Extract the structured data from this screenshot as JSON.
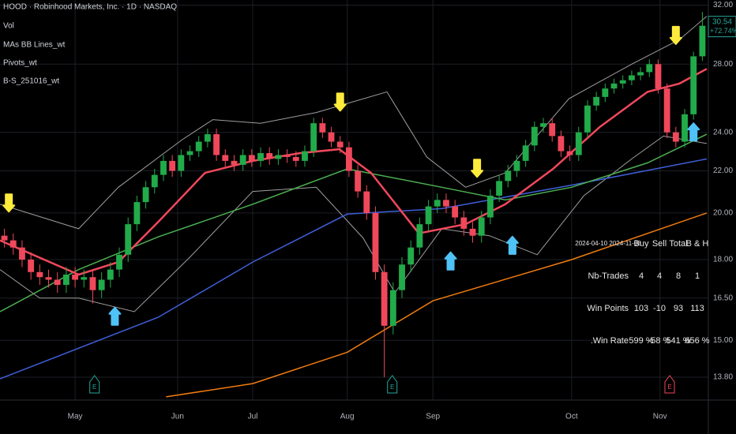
{
  "header": {
    "title": "HOOD · Robinhood Markets, Inc. · 1D · NASDAQ",
    "indicators": [
      "Vol",
      "MAs BB Lines_wt",
      "Pivots_wt",
      "B-S_251016_wt"
    ]
  },
  "chart_data": {
    "type": "candlestick",
    "log_scale": true,
    "grid": true,
    "up_color": "#22ab4a",
    "down_color": "#f0485b",
    "xlim": [
      0,
      80
    ],
    "xticks": [
      {
        "value": 8.5,
        "label": "May"
      },
      {
        "value": 20.1,
        "label": "Jun"
      },
      {
        "value": 28.6,
        "label": "Jul"
      },
      {
        "value": 39.3,
        "label": "Aug"
      },
      {
        "value": 49,
        "label": "Sep"
      },
      {
        "value": 64.7,
        "label": "Oct"
      },
      {
        "value": 74.7,
        "label": "Nov"
      }
    ],
    "ylim": [
      13.15,
      32.37
    ],
    "yticks": [
      {
        "value": 32,
        "label": "32.00"
      },
      {
        "value": 28,
        "label": "28.00"
      },
      {
        "value": 24,
        "label": "24.00"
      },
      {
        "value": 22,
        "label": "22.00"
      },
      {
        "value": 20,
        "label": "20.00"
      },
      {
        "value": 18,
        "label": "18.00"
      },
      {
        "value": 16.5,
        "label": "16.50"
      },
      {
        "value": 15,
        "label": "15.00"
      },
      {
        "value": 13.8,
        "label": "13.80"
      }
    ],
    "open": [
      19.0,
      18.8,
      18.5,
      18.0,
      17.5,
      17.3,
      17.2,
      17.0,
      17.4,
      17.2,
      17.3,
      16.8,
      17.2,
      17.6,
      18.2,
      19.5,
      20.5,
      21.2,
      21.8,
      22.5,
      22.0,
      22.8,
      23.0,
      23.5,
      23.9,
      22.8,
      22.5,
      22.3,
      22.8,
      22.5,
      22.9,
      22.6,
      22.8,
      22.7,
      22.5,
      23.0,
      24.5,
      24.0,
      23.5,
      23.2,
      22.0,
      21.0,
      20.0,
      17.5,
      15.5,
      16.8,
      17.8,
      18.5,
      19.5,
      20.3,
      20.6,
      20.3,
      19.8,
      19.3,
      19.0,
      19.8,
      20.8,
      21.5,
      22.0,
      22.5,
      23.3,
      24.3,
      24.5,
      23.8,
      23.0,
      22.8,
      24.0,
      25.5,
      26.0,
      26.5,
      26.8,
      27.0,
      27.3,
      27.5,
      28.0,
      26.5,
      24.0,
      23.5,
      25.0,
      28.5
    ],
    "high": [
      19.3,
      19.1,
      18.8,
      18.3,
      17.8,
      17.6,
      17.5,
      17.7,
      17.7,
      17.6,
      17.6,
      17.5,
      17.9,
      18.5,
      19.8,
      20.8,
      21.5,
      22.1,
      22.8,
      22.8,
      23.1,
      23.3,
      23.8,
      24.2,
      24.2,
      23.1,
      22.8,
      23.1,
      23.1,
      23.2,
      23.2,
      23.1,
      23.1,
      23.0,
      23.3,
      24.8,
      24.8,
      24.3,
      23.8,
      23.5,
      22.3,
      21.3,
      20.3,
      17.8,
      17.1,
      18.1,
      18.8,
      19.8,
      20.6,
      20.9,
      20.9,
      20.6,
      20.1,
      19.6,
      20.1,
      21.1,
      21.8,
      22.3,
      22.8,
      23.6,
      24.6,
      24.8,
      24.8,
      24.1,
      23.3,
      24.3,
      25.8,
      26.3,
      26.8,
      27.1,
      27.3,
      27.6,
      27.8,
      28.3,
      28.3,
      26.8,
      24.3,
      25.3,
      28.8,
      31.5
    ],
    "low": [
      18.5,
      18.2,
      17.7,
      17.2,
      17.0,
      16.9,
      16.7,
      16.7,
      16.9,
      16.9,
      16.3,
      16.5,
      16.9,
      17.3,
      17.9,
      19.2,
      20.2,
      20.9,
      21.5,
      21.7,
      21.7,
      22.5,
      22.7,
      23.2,
      22.5,
      22.2,
      22.0,
      22.0,
      22.2,
      22.2,
      22.3,
      22.3,
      22.4,
      22.2,
      22.2,
      22.7,
      23.7,
      23.2,
      22.9,
      21.7,
      20.7,
      19.7,
      17.2,
      13.8,
      15.2,
      16.5,
      17.5,
      18.2,
      19.2,
      20.0,
      20.0,
      19.5,
      19.0,
      18.7,
      18.7,
      19.5,
      20.5,
      21.2,
      21.7,
      22.2,
      23.0,
      24.0,
      23.5,
      22.7,
      22.5,
      22.5,
      23.7,
      25.2,
      25.7,
      26.2,
      26.5,
      26.7,
      27.0,
      27.2,
      26.2,
      23.7,
      23.2,
      23.2,
      24.7,
      28.2
    ],
    "close": [
      18.8,
      18.5,
      18.0,
      17.5,
      17.3,
      17.2,
      17.0,
      17.4,
      17.2,
      17.3,
      16.8,
      17.2,
      17.6,
      18.2,
      19.5,
      20.5,
      21.2,
      21.8,
      22.5,
      22.0,
      22.8,
      23.0,
      23.5,
      23.9,
      22.8,
      22.5,
      22.3,
      22.8,
      22.5,
      22.9,
      22.6,
      22.8,
      22.7,
      22.5,
      23.0,
      24.5,
      24.0,
      23.5,
      23.2,
      22.0,
      21.0,
      20.0,
      17.5,
      15.5,
      16.8,
      17.8,
      18.5,
      19.5,
      20.3,
      20.6,
      20.3,
      19.8,
      19.3,
      19.0,
      19.8,
      20.8,
      21.5,
      22.0,
      22.5,
      23.3,
      24.3,
      24.5,
      23.8,
      23.0,
      22.8,
      24.0,
      25.5,
      26.0,
      26.5,
      26.8,
      27.0,
      27.3,
      27.5,
      28.0,
      26.5,
      24.0,
      23.5,
      25.0,
      28.5,
      30.54
    ],
    "lines": [
      {
        "color": "#9e9e9e",
        "width": 1,
        "x": [
          0,
          8.9,
          13.4,
          20.6,
          24.1,
          29.5,
          35.8,
          43.8,
          48.3,
          52.7,
          57.2,
          64.4,
          71.5,
          76.9,
          80
        ],
        "values": [
          20.4,
          19.3,
          21.2,
          23.6,
          24.7,
          24.5,
          25.1,
          26.3,
          22.7,
          21.2,
          21.9,
          25.9,
          28.0,
          29.6,
          31.2
        ]
      },
      {
        "color": "#9e9e9e",
        "width": 1,
        "x": [
          0,
          4.5,
          8.9,
          15.2,
          21.5,
          28.6,
          35.8,
          41.1,
          44.7,
          50,
          55.4,
          60.8,
          66.1,
          71.5,
          75.1,
          80
        ],
        "values": [
          17.6,
          16.5,
          16.5,
          16.0,
          18.1,
          21.0,
          21.2,
          18.9,
          16.7,
          19.3,
          19.0,
          18.2,
          20.8,
          22.6,
          23.8,
          23.4
        ]
      },
      {
        "color": "#f07c0f",
        "width": 1.5,
        "x": [
          18.8,
          28.6,
          39.3,
          49,
          64.7,
          80
        ],
        "values": [
          13.2,
          13.6,
          14.6,
          16.4,
          18.0,
          20.0
        ]
      },
      {
        "color": "#3f5fd9",
        "width": 1.5,
        "x": [
          0,
          17.9,
          28.6,
          39.3,
          50,
          64.7,
          80
        ],
        "values": [
          13.75,
          15.8,
          17.9,
          19.95,
          20.2,
          21.3,
          22.6
        ]
      },
      {
        "color": "#4caf50",
        "width": 1.5,
        "x": [
          0,
          8.9,
          17.9,
          28.6,
          39.3,
          50,
          57.2,
          64.7,
          73.3,
          80
        ],
        "values": [
          16.0,
          17.6,
          18.95,
          20.4,
          22.1,
          21.2,
          20.6,
          21.2,
          22.4,
          23.9
        ]
      },
      {
        "color": "#f0485b",
        "width": 2.5,
        "x": [
          0,
          8.9,
          13.4,
          17.9,
          23.2,
          28.6,
          34,
          38.4,
          42,
          47.4,
          52.7,
          57.2,
          62.6,
          67.9,
          73.3,
          76.9,
          80
        ],
        "values": [
          18.8,
          17.4,
          17.9,
          19.6,
          21.9,
          22.5,
          22.9,
          23.1,
          21.9,
          19.1,
          19.5,
          20.4,
          22.1,
          24.3,
          26.3,
          26.8,
          27.7
        ]
      }
    ],
    "signals": [
      {
        "x": 1,
        "value": 20.06,
        "color": "#ffeb3b",
        "direction": "down"
      },
      {
        "x": 38.5,
        "value": 25.2,
        "color": "#ffeb3b",
        "direction": "down"
      },
      {
        "x": 54,
        "value": 21.7,
        "color": "#ffeb3b",
        "direction": "down"
      },
      {
        "x": 76.5,
        "value": 29.3,
        "color": "#ffeb3b",
        "direction": "down"
      },
      {
        "x": 13,
        "value": 16.15,
        "color": "#4fc3f7",
        "direction": "up"
      },
      {
        "x": 51,
        "value": 18.3,
        "color": "#4fc3f7",
        "direction": "up"
      },
      {
        "x": 58,
        "value": 18.96,
        "color": "#4fc3f7",
        "direction": "up"
      },
      {
        "x": 78.5,
        "value": 24.5,
        "color": "#4fc3f7",
        "direction": "up"
      }
    ],
    "earnings": {
      "x": [
        10.7,
        44.4,
        75.8
      ],
      "labels": [
        "E",
        "E",
        "E"
      ],
      "colors": [
        "#26a69a",
        "#26a69a",
        "#f0485b"
      ]
    },
    "price_tag": {
      "label": "30.54",
      "change": "+72.74%",
      "color": "#26a69a"
    }
  },
  "stats": {
    "period": "2024-04-10 2024-11-08",
    "columns": [
      "Buy",
      "Sell",
      "Total",
      "B & H"
    ],
    "rows": [
      {
        "label": "Nb-Trades",
        "cells": [
          4,
          4,
          8,
          1
        ]
      },
      {
        "label": "Win Points",
        "cells": [
          103,
          -10,
          93,
          113
        ]
      },
      {
        "prefix": ".",
        "label": "Win Rate",
        "cells": [
          "599 %",
          "-58 %",
          "541 %",
          "656 %"
        ]
      }
    ]
  }
}
